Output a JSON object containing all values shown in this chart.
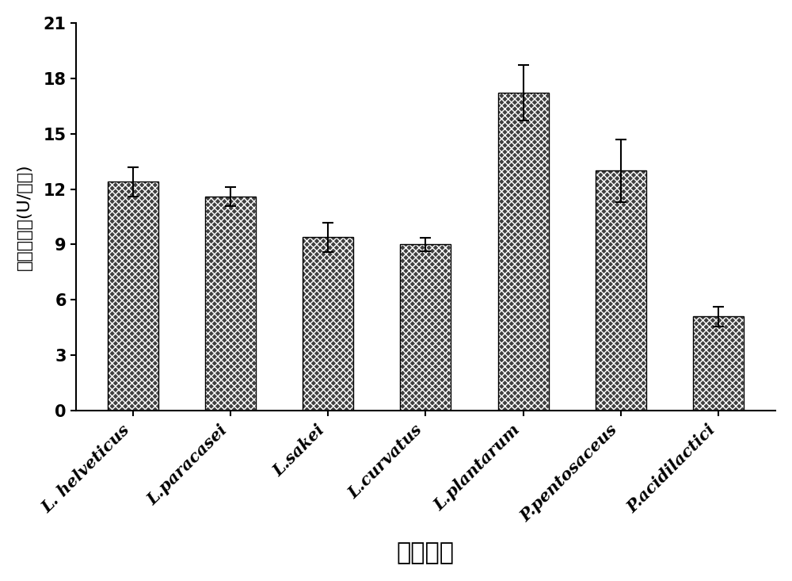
{
  "categories": [
    "L. helveticus",
    "L.paracasei",
    "L.sakei",
    "L.curvatus",
    "L.plantarum",
    "P.pentosaceus",
    "P.acidilactici"
  ],
  "values": [
    12.4,
    11.6,
    9.4,
    9.0,
    17.2,
    13.0,
    5.1
  ],
  "errors": [
    0.8,
    0.5,
    0.8,
    0.35,
    1.5,
    1.7,
    0.55
  ],
  "bar_color": "#404040",
  "hatch": "xxxx",
  "xlabel": "不同菌株",
  "ylabel": "蛋白酶活力(U/毫升)",
  "ylim": [
    0,
    21
  ],
  "yticks": [
    0,
    3,
    6,
    9,
    12,
    15,
    18,
    21
  ],
  "xlabel_fontsize": 22,
  "ylabel_fontsize": 16,
  "tick_fontsize": 15,
  "background_color": "#ffffff",
  "figsize": [
    10.0,
    7.33
  ],
  "dpi": 100
}
